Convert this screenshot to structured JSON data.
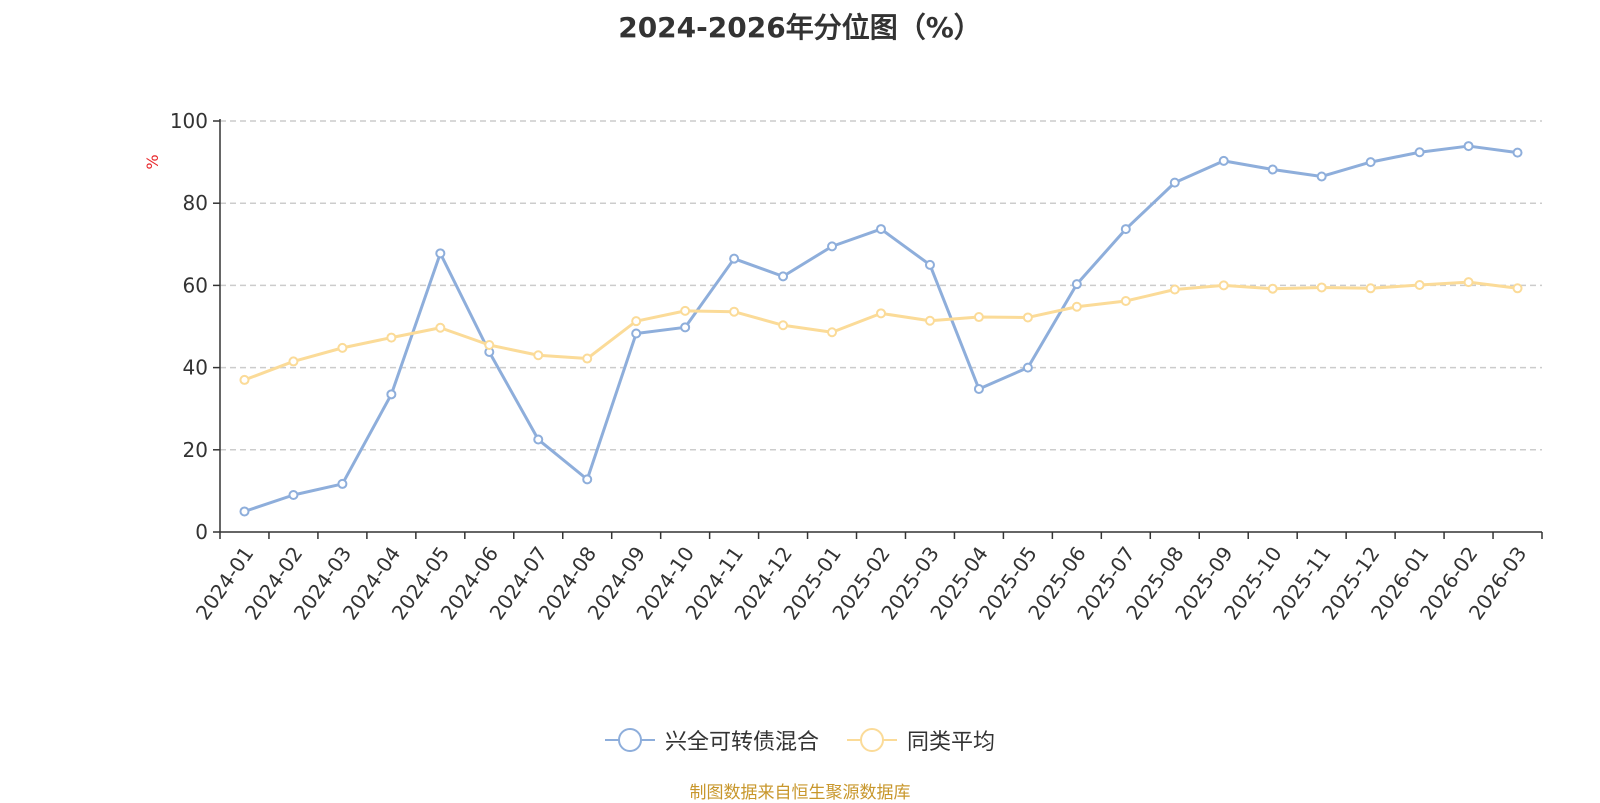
{
  "chart_data": {
    "type": "line",
    "title": "2024-2026年分位图（%）",
    "ylabel": "%",
    "ylim": [
      0,
      100
    ],
    "yticks": [
      "0",
      "20",
      "40",
      "60",
      "80",
      "100"
    ],
    "categories": [
      "2024-01",
      "2024-02",
      "2024-03",
      "2024-04",
      "2024-05",
      "2024-06",
      "2024-07",
      "2024-08",
      "2024-09",
      "2024-10",
      "2024-11",
      "2024-12",
      "2025-01",
      "2025-02",
      "2025-03",
      "2025-04",
      "2025-05",
      "2025-06",
      "2025-07",
      "2025-08",
      "2025-09",
      "2025-10",
      "2025-11",
      "2025-12",
      "2026-01",
      "2026-02",
      "2026-03"
    ],
    "series": [
      {
        "name": "兴全可转债混合",
        "color": "#8eaedb",
        "values": [
          5,
          9,
          11.7,
          33.5,
          67.8,
          43.8,
          22.5,
          12.8,
          48.3,
          49.8,
          66.5,
          62.2,
          69.5,
          73.7,
          65,
          34.8,
          40,
          60.3,
          73.7,
          85,
          90.3,
          88.2,
          86.5,
          90,
          92.4,
          93.9,
          92.3
        ]
      },
      {
        "name": "同类平均",
        "color": "#fbdb98",
        "values": [
          37,
          41.5,
          44.8,
          47.3,
          49.7,
          45.5,
          43,
          42.2,
          51.3,
          53.8,
          53.6,
          50.3,
          48.6,
          53.2,
          51.4,
          52.3,
          52.2,
          54.8,
          56.2,
          59,
          60,
          59.2,
          59.5,
          59.3,
          60.1,
          60.8,
          59.3
        ]
      }
    ],
    "grid": true,
    "legend_position": "bottom-center"
  },
  "source_note": "制图数据来自恒生聚源数据库"
}
